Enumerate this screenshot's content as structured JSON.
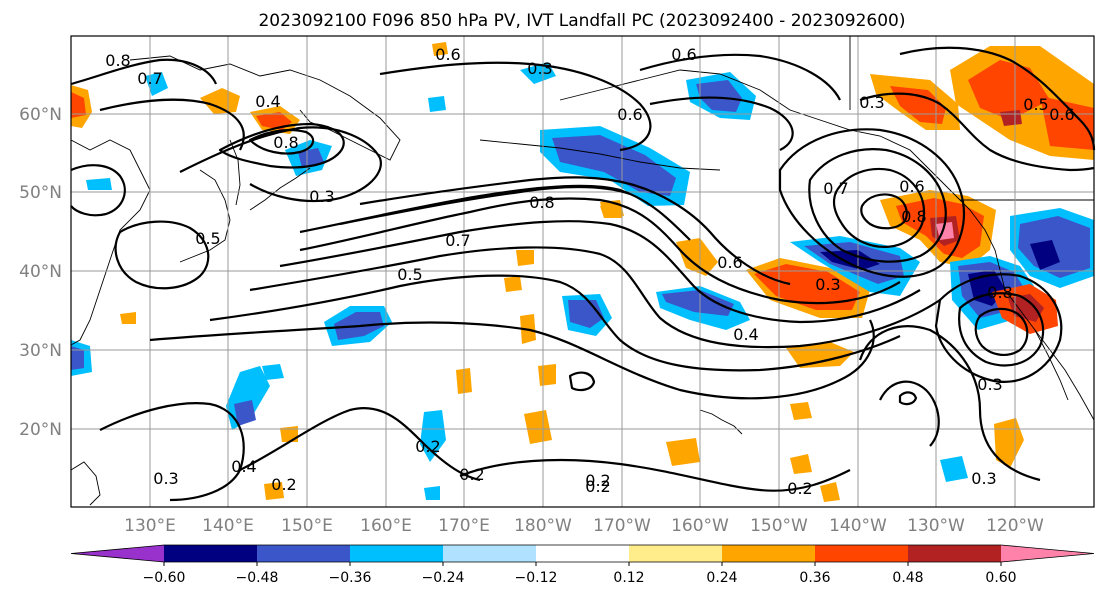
{
  "title": "2023092100 F096 850 hPa PV, IVT Landfall PC (2023092400 - 2023092600)",
  "lat_labels": [
    "60°N",
    "50°N",
    "40°N",
    "30°N",
    "20°N"
  ],
  "lon_labels": [
    "130°E",
    "140°E",
    "150°E",
    "160°E",
    "170°E",
    "180°W",
    "170°W",
    "160°W",
    "150°W",
    "140°W",
    "130°W",
    "120°W"
  ],
  "colorbar": {
    "colors": [
      "#9932cc",
      "#000080",
      "#3a56c9",
      "#00bfff",
      "#b0e2ff",
      "#ffffff",
      "#ffec8b",
      "#ffa500",
      "#ff4500",
      "#b22222",
      "#ff82ab"
    ],
    "ticks": [
      "−0.60",
      "−0.48",
      "−0.36",
      "−0.24",
      "−0.12",
      "0.12",
      "0.24",
      "0.36",
      "0.48",
      "0.60"
    ]
  },
  "contour_labels": [
    "0.8",
    "0.7",
    "0.6",
    "0.4",
    "0.8",
    "0.3",
    "0.5",
    "0.6",
    "0.8",
    "0.5",
    "0.7",
    "0.8",
    "0.6",
    "0.3",
    "0.6",
    "0.8",
    "0.3",
    "0.4",
    "0.3",
    "0.2",
    "0.2",
    "0.2",
    "0.2",
    "0.4",
    "0.3",
    "0.2",
    "0.3",
    "0.2",
    "0.6",
    "0.7",
    "0.3",
    "0.5",
    "0.6"
  ]
}
